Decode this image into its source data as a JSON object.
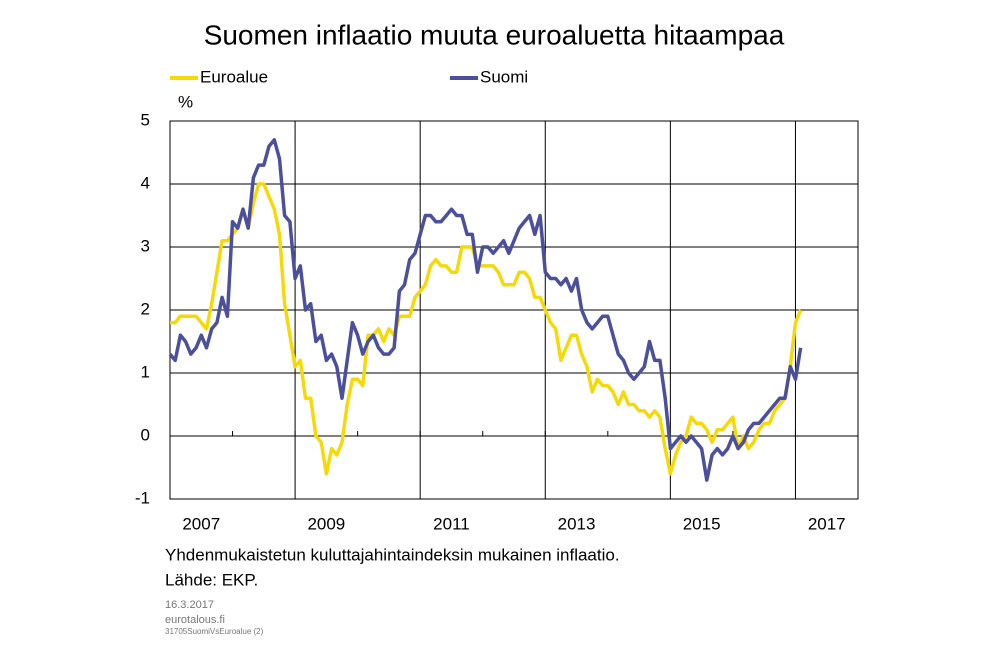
{
  "chart_data": {
    "type": "line",
    "title": "Suomen inflaatio muuta euroaluetta hitaampaa",
    "y_unit_label": "%",
    "notes": [
      "Yhdenmukaistetun kuluttajahintaindeksin mukainen inflaatio.",
      "Lähde: EKP."
    ],
    "footer": [
      "16.3.2017",
      "eurotalous.fi",
      "31705SuomiVsEuroalue  (2)"
    ],
    "x": [
      2007,
      2007.083,
      2007.167,
      2007.25,
      2007.333,
      2007.417,
      2007.5,
      2007.583,
      2007.667,
      2007.75,
      2007.833,
      2007.917,
      2008,
      2008.083,
      2008.167,
      2008.25,
      2008.333,
      2008.417,
      2008.5,
      2008.583,
      2008.667,
      2008.75,
      2008.833,
      2008.917,
      2009,
      2009.083,
      2009.167,
      2009.25,
      2009.333,
      2009.417,
      2009.5,
      2009.583,
      2009.667,
      2009.75,
      2009.833,
      2009.917,
      2010,
      2010.083,
      2010.167,
      2010.25,
      2010.333,
      2010.417,
      2010.5,
      2010.583,
      2010.667,
      2010.75,
      2010.833,
      2010.917,
      2011,
      2011.083,
      2011.167,
      2011.25,
      2011.333,
      2011.417,
      2011.5,
      2011.583,
      2011.667,
      2011.75,
      2011.833,
      2011.917,
      2012,
      2012.083,
      2012.167,
      2012.25,
      2012.333,
      2012.417,
      2012.5,
      2012.583,
      2012.667,
      2012.75,
      2012.833,
      2012.917,
      2013,
      2013.083,
      2013.167,
      2013.25,
      2013.333,
      2013.417,
      2013.5,
      2013.583,
      2013.667,
      2013.75,
      2013.833,
      2013.917,
      2014,
      2014.083,
      2014.167,
      2014.25,
      2014.333,
      2014.417,
      2014.5,
      2014.583,
      2014.667,
      2014.75,
      2014.833,
      2014.917,
      2015,
      2015.083,
      2015.167,
      2015.25,
      2015.333,
      2015.417,
      2015.5,
      2015.583,
      2015.667,
      2015.75,
      2015.833,
      2015.917,
      2016,
      2016.083,
      2016.167,
      2016.25,
      2016.333,
      2016.417,
      2016.5,
      2016.583,
      2016.667,
      2016.75,
      2016.833,
      2016.917,
      2017,
      2017.083
    ],
    "series": [
      {
        "name": "Euroalue",
        "color": "#f5d90a",
        "values": [
          1.8,
          1.8,
          1.9,
          1.9,
          1.9,
          1.9,
          1.8,
          1.7,
          2.1,
          2.6,
          3.1,
          3.1,
          3.2,
          3.3,
          3.6,
          3.3,
          3.7,
          4.0,
          4.0,
          3.8,
          3.6,
          3.2,
          2.1,
          1.6,
          1.1,
          1.2,
          0.6,
          0.6,
          0.0,
          -0.1,
          -0.6,
          -0.2,
          -0.3,
          -0.1,
          0.5,
          0.9,
          0.9,
          0.8,
          1.6,
          1.6,
          1.7,
          1.5,
          1.7,
          1.6,
          1.9,
          1.9,
          1.9,
          2.2,
          2.3,
          2.4,
          2.7,
          2.8,
          2.7,
          2.7,
          2.6,
          2.6,
          3.0,
          3.0,
          3.0,
          2.7,
          2.7,
          2.7,
          2.7,
          2.6,
          2.4,
          2.4,
          2.4,
          2.6,
          2.6,
          2.5,
          2.2,
          2.2,
          2.0,
          1.8,
          1.7,
          1.2,
          1.4,
          1.6,
          1.6,
          1.3,
          1.1,
          0.7,
          0.9,
          0.8,
          0.8,
          0.7,
          0.5,
          0.7,
          0.5,
          0.5,
          0.4,
          0.4,
          0.3,
          0.4,
          0.3,
          -0.2,
          -0.6,
          -0.3,
          -0.1,
          0.0,
          0.3,
          0.2,
          0.2,
          0.1,
          -0.1,
          0.1,
          0.1,
          0.2,
          0.3,
          -0.2,
          0.0,
          -0.2,
          -0.1,
          0.1,
          0.2,
          0.2,
          0.4,
          0.5,
          0.6,
          1.1,
          1.8,
          2.0
        ]
      },
      {
        "name": "Suomi",
        "color": "#4b4f9c",
        "values": [
          1.3,
          1.2,
          1.6,
          1.5,
          1.3,
          1.4,
          1.6,
          1.4,
          1.7,
          1.8,
          2.2,
          1.9,
          3.4,
          3.3,
          3.6,
          3.3,
          4.1,
          4.3,
          4.3,
          4.6,
          4.7,
          4.4,
          3.5,
          3.4,
          2.5,
          2.7,
          2.0,
          2.1,
          1.5,
          1.6,
          1.2,
          1.3,
          1.1,
          0.6,
          1.2,
          1.8,
          1.6,
          1.3,
          1.5,
          1.6,
          1.4,
          1.3,
          1.3,
          1.4,
          2.3,
          2.4,
          2.8,
          2.9,
          3.2,
          3.5,
          3.5,
          3.4,
          3.4,
          3.5,
          3.6,
          3.5,
          3.5,
          3.2,
          3.2,
          2.6,
          3.0,
          3.0,
          2.9,
          3.0,
          3.1,
          2.9,
          3.1,
          3.3,
          3.4,
          3.5,
          3.2,
          3.5,
          2.6,
          2.5,
          2.5,
          2.4,
          2.5,
          2.3,
          2.5,
          2.0,
          1.8,
          1.7,
          1.8,
          1.9,
          1.9,
          1.6,
          1.3,
          1.2,
          1.0,
          0.9,
          1.0,
          1.1,
          1.5,
          1.2,
          1.2,
          0.6,
          -0.2,
          -0.1,
          0.0,
          -0.1,
          0.0,
          -0.1,
          -0.2,
          -0.7,
          -0.3,
          -0.2,
          -0.3,
          -0.2,
          0.0,
          -0.2,
          -0.1,
          0.1,
          0.2,
          0.2,
          0.3,
          0.4,
          0.5,
          0.6,
          0.6,
          1.1,
          0.9,
          1.4
        ]
      }
    ],
    "xlim": [
      2007,
      2018
    ],
    "xticks": [
      {
        "value": 2007.5,
        "label": "2007"
      },
      {
        "value": 2009.5,
        "label": "2009"
      },
      {
        "value": 2011.5,
        "label": "2011"
      },
      {
        "value": 2013.5,
        "label": "2013"
      },
      {
        "value": 2015.5,
        "label": "2015"
      },
      {
        "value": 2017.5,
        "label": "2017"
      }
    ],
    "xminorticks": [
      2008,
      2009,
      2010,
      2011,
      2012,
      2013,
      2014,
      2015,
      2016,
      2017
    ],
    "xgrid": [
      2009,
      2011,
      2013,
      2015,
      2017
    ],
    "ylim": [
      -1,
      5
    ],
    "yticks": [
      -1,
      0,
      1,
      2,
      3,
      4,
      5
    ],
    "grid": true
  }
}
